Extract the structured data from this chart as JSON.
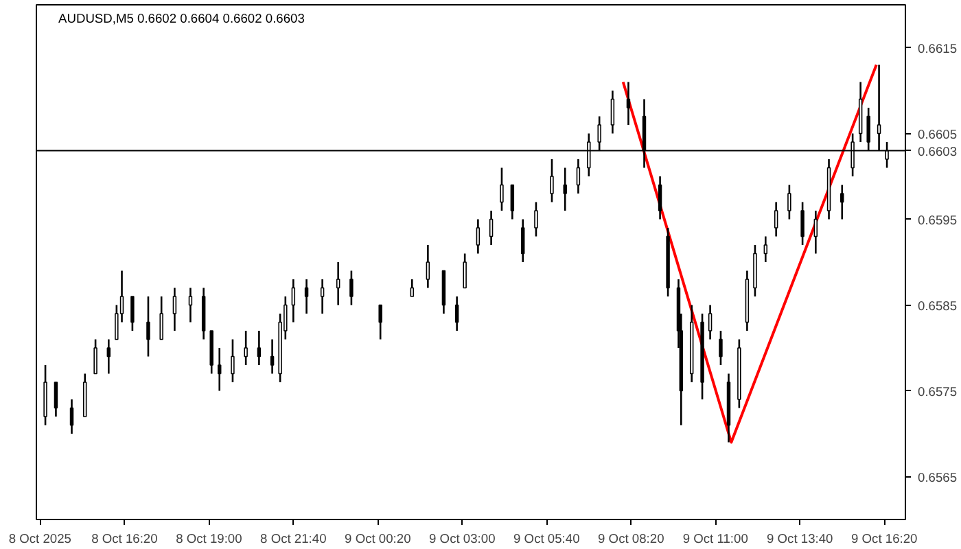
{
  "chart_data": {
    "type": "candlestick",
    "title": "AUDUSD,M5  0.6602 0.6604 0.6602 0.6603",
    "x": [
      "2025-10-08T13:50",
      "2025-10-08T14:10",
      "2025-10-08T14:40",
      "2025-10-08T15:05",
      "2025-10-08T15:25",
      "2025-10-08T15:50",
      "2025-10-08T16:05",
      "2025-10-08T16:15",
      "2025-10-08T16:35",
      "2025-10-08T17:05",
      "2025-10-08T17:30",
      "2025-10-08T17:55",
      "2025-10-08T18:25",
      "2025-10-08T18:50",
      "2025-10-08T19:05",
      "2025-10-08T19:20",
      "2025-10-08T19:45",
      "2025-10-08T20:10",
      "2025-10-08T20:35",
      "2025-10-08T21:00",
      "2025-10-08T21:15",
      "2025-10-08T21:25",
      "2025-10-08T21:40",
      "2025-10-08T22:05",
      "2025-10-08T22:35",
      "2025-10-08T23:05",
      "2025-10-08T23:30",
      "2025-10-09T00:25",
      "2025-10-09T01:25",
      "2025-10-09T01:55",
      "2025-10-09T02:25",
      "2025-10-09T02:50",
      "2025-10-09T03:05",
      "2025-10-09T03:30",
      "2025-10-09T03:55",
      "2025-10-09T04:15",
      "2025-10-09T04:35",
      "2025-10-09T04:55",
      "2025-10-09T05:20",
      "2025-10-09T05:50",
      "2025-10-09T06:15",
      "2025-10-09T06:40",
      "2025-10-09T07:00",
      "2025-10-09T07:20",
      "2025-10-09T07:45",
      "2025-10-09T08:15",
      "2025-10-09T08:45",
      "2025-10-09T09:15",
      "2025-10-09T09:30",
      "2025-10-09T09:50",
      "2025-10-09T09:55",
      "2025-10-09T10:15",
      "2025-10-09T10:35",
      "2025-10-09T10:50",
      "2025-10-09T11:10",
      "2025-10-09T11:25",
      "2025-10-09T11:45",
      "2025-10-09T12:00",
      "2025-10-09T12:15",
      "2025-10-09T12:35",
      "2025-10-09T12:55",
      "2025-10-09T13:20",
      "2025-10-09T13:45",
      "2025-10-09T14:10",
      "2025-10-09T14:35",
      "2025-10-09T15:00",
      "2025-10-09T15:20",
      "2025-10-09T15:35",
      "2025-10-09T15:50",
      "2025-10-09T16:10",
      "2025-10-09T16:25"
    ],
    "ohlc": [
      [
        0.6572,
        0.6578,
        0.6571,
        0.6576
      ],
      [
        0.6576,
        0.6576,
        0.6572,
        0.6573
      ],
      [
        0.6573,
        0.6574,
        0.657,
        0.6571
      ],
      [
        0.6572,
        0.6577,
        0.6572,
        0.6576
      ],
      [
        0.6577,
        0.6581,
        0.6577,
        0.658
      ],
      [
        0.658,
        0.6581,
        0.6577,
        0.6579
      ],
      [
        0.6581,
        0.6585,
        0.6581,
        0.6584
      ],
      [
        0.6584,
        0.6589,
        0.6583,
        0.6586
      ],
      [
        0.6586,
        0.6586,
        0.6582,
        0.6583
      ],
      [
        0.6583,
        0.6586,
        0.6579,
        0.6581
      ],
      [
        0.6581,
        0.6586,
        0.6581,
        0.6584
      ],
      [
        0.6584,
        0.6587,
        0.6582,
        0.6586
      ],
      [
        0.6585,
        0.6587,
        0.6583,
        0.6586
      ],
      [
        0.6586,
        0.6587,
        0.6581,
        0.6582
      ],
      [
        0.6582,
        0.6582,
        0.6577,
        0.6578
      ],
      [
        0.6578,
        0.658,
        0.6575,
        0.6577
      ],
      [
        0.6577,
        0.6581,
        0.6576,
        0.6579
      ],
      [
        0.6579,
        0.6582,
        0.6578,
        0.658
      ],
      [
        0.658,
        0.6582,
        0.6578,
        0.6579
      ],
      [
        0.6579,
        0.6581,
        0.6577,
        0.6578
      ],
      [
        0.6577,
        0.6584,
        0.6576,
        0.6583
      ],
      [
        0.6582,
        0.6586,
        0.6581,
        0.6585
      ],
      [
        0.6585,
        0.6588,
        0.6583,
        0.6587
      ],
      [
        0.6587,
        0.6588,
        0.6584,
        0.6586
      ],
      [
        0.6586,
        0.6588,
        0.6584,
        0.6587
      ],
      [
        0.6587,
        0.659,
        0.6585,
        0.6588
      ],
      [
        0.6588,
        0.6589,
        0.6585,
        0.6586
      ],
      [
        0.6585,
        0.6585,
        0.6581,
        0.6583
      ],
      [
        0.6586,
        0.6588,
        0.6586,
        0.6587
      ],
      [
        0.6588,
        0.6592,
        0.6587,
        0.659
      ],
      [
        0.6589,
        0.6589,
        0.6584,
        0.6585
      ],
      [
        0.6585,
        0.6586,
        0.6582,
        0.6583
      ],
      [
        0.6587,
        0.6591,
        0.6587,
        0.659
      ],
      [
        0.6592,
        0.6595,
        0.6591,
        0.6594
      ],
      [
        0.6593,
        0.6596,
        0.6592,
        0.6595
      ],
      [
        0.6597,
        0.6601,
        0.6596,
        0.6599
      ],
      [
        0.6599,
        0.6599,
        0.6595,
        0.6596
      ],
      [
        0.6594,
        0.6595,
        0.659,
        0.6591
      ],
      [
        0.6594,
        0.6597,
        0.6593,
        0.6596
      ],
      [
        0.6598,
        0.6602,
        0.6597,
        0.66
      ],
      [
        0.6599,
        0.6601,
        0.6596,
        0.6598
      ],
      [
        0.6599,
        0.6602,
        0.6598,
        0.6601
      ],
      [
        0.6601,
        0.6605,
        0.66,
        0.6604
      ],
      [
        0.6604,
        0.6607,
        0.6603,
        0.6606
      ],
      [
        0.6606,
        0.661,
        0.6605,
        0.6609
      ],
      [
        0.6609,
        0.6611,
        0.6606,
        0.6608
      ],
      [
        0.6607,
        0.6609,
        0.6601,
        0.6603
      ],
      [
        0.6599,
        0.66,
        0.6595,
        0.6596
      ],
      [
        0.6593,
        0.6594,
        0.6586,
        0.6587
      ],
      [
        0.6587,
        0.6588,
        0.658,
        0.6582
      ],
      [
        0.6582,
        0.6584,
        0.6571,
        0.6575
      ],
      [
        0.6577,
        0.6585,
        0.6576,
        0.6583
      ],
      [
        0.6583,
        0.6584,
        0.6574,
        0.6576
      ],
      [
        0.6582,
        0.6585,
        0.6581,
        0.6584
      ],
      [
        0.6581,
        0.6582,
        0.6578,
        0.6579
      ],
      [
        0.6576,
        0.6577,
        0.6569,
        0.6571
      ],
      [
        0.6574,
        0.6581,
        0.6573,
        0.658
      ],
      [
        0.6583,
        0.6589,
        0.6582,
        0.6588
      ],
      [
        0.6587,
        0.6592,
        0.6586,
        0.6591
      ],
      [
        0.6591,
        0.6593,
        0.659,
        0.6592
      ],
      [
        0.6594,
        0.6597,
        0.6593,
        0.6596
      ],
      [
        0.6596,
        0.6599,
        0.6595,
        0.6598
      ],
      [
        0.6596,
        0.6597,
        0.6592,
        0.6593
      ],
      [
        0.6593,
        0.6596,
        0.6591,
        0.6595
      ],
      [
        0.6596,
        0.6602,
        0.6595,
        0.6601
      ],
      [
        0.6598,
        0.6599,
        0.6595,
        0.6597
      ],
      [
        0.6601,
        0.6605,
        0.66,
        0.6604
      ],
      [
        0.6605,
        0.6611,
        0.6604,
        0.6609
      ],
      [
        0.6607,
        0.6608,
        0.6603,
        0.6604
      ],
      [
        0.6605,
        0.6613,
        0.6603,
        0.6606
      ],
      [
        0.6602,
        0.6604,
        0.6601,
        0.6603
      ]
    ],
    "color": "#000000",
    "series": [
      {
        "type": "line",
        "color": "#ff0000",
        "x": [
          "2025-10-09T08:05",
          "2025-10-09T11:30",
          "2025-10-09T16:05"
        ],
        "values": [
          0.6611,
          0.6569,
          0.6613
        ]
      }
    ],
    "xlim": [
      "2025-10-08T13:33",
      "2025-10-09T17:00"
    ],
    "xticks": [
      {
        "value": "2025-10-08T13:40",
        "label": "8 Oct 2025"
      },
      {
        "value": "2025-10-08T16:20",
        "label": "8 Oct 16:20"
      },
      {
        "value": "2025-10-08T19:00",
        "label": "8 Oct 19:00"
      },
      {
        "value": "2025-10-08T21:40",
        "label": "8 Oct 21:40"
      },
      {
        "value": "2025-10-09T00:20",
        "label": "9 Oct 00:20"
      },
      {
        "value": "2025-10-09T03:00",
        "label": "9 Oct 03:00"
      },
      {
        "value": "2025-10-09T05:40",
        "label": "9 Oct 05:40"
      },
      {
        "value": "2025-10-09T08:20",
        "label": "9 Oct 08:20"
      },
      {
        "value": "2025-10-09T11:00",
        "label": "9 Oct 11:00"
      },
      {
        "value": "2025-10-09T13:40",
        "label": "9 Oct 13:40"
      },
      {
        "value": "2025-10-09T16:20",
        "label": "9 Oct 16:20"
      }
    ],
    "ylim": [
      0.656,
      0.662
    ],
    "yticks": [
      0.6565,
      0.6575,
      0.6585,
      0.6595,
      0.6605,
      0.6615
    ],
    "ref_lines": [
      {
        "axis": "y",
        "value": 0.6603,
        "label": "0.6603",
        "color": "#000000"
      }
    ]
  }
}
